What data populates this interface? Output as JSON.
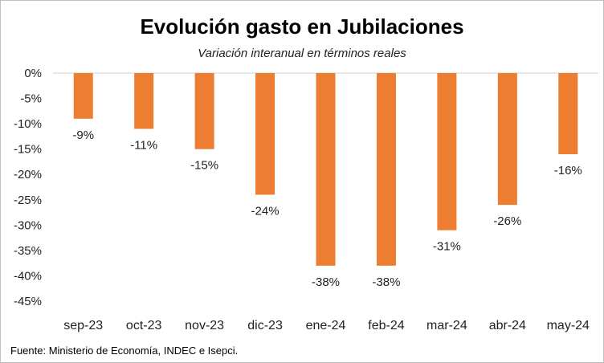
{
  "chart_data": {
    "type": "bar",
    "title": "Evolución gasto en Jubilaciones",
    "subtitle": "Variación interanual en términos reales",
    "source": "Fuente: Ministerio de Economía, INDEC e Isepci.",
    "categories": [
      "sep-23",
      "oct-23",
      "nov-23",
      "dic-23",
      "ene-24",
      "feb-24",
      "mar-24",
      "abr-24",
      "may-24"
    ],
    "values": [
      -9,
      -11,
      -15,
      -24,
      -38,
      -38,
      -31,
      -26,
      -16
    ],
    "data_labels": [
      "-9%",
      "-11%",
      "-15%",
      "-24%",
      "-38%",
      "-38%",
      "-31%",
      "-26%",
      "-16%"
    ],
    "y_ticks": [
      0,
      -5,
      -10,
      -15,
      -20,
      -25,
      -30,
      -35,
      -40,
      -45
    ],
    "y_tick_labels": [
      "0%",
      "-5%",
      "-10%",
      "-15%",
      "-20%",
      "-25%",
      "-30%",
      "-35%",
      "-40%",
      "-45%"
    ],
    "ylim": [
      -45,
      0
    ],
    "bar_color": "#ED7D31",
    "grid": false,
    "legend": "none"
  }
}
